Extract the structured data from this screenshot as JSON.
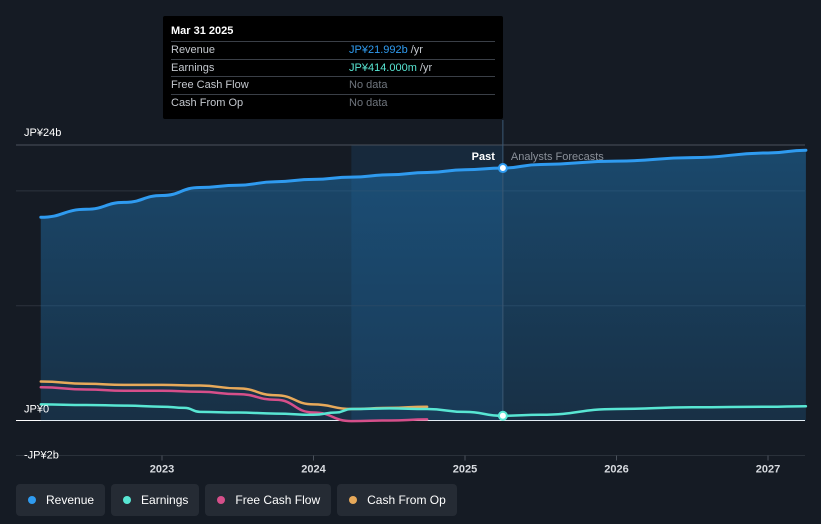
{
  "tooltip": {
    "date": "Mar 31 2025",
    "rows": [
      {
        "label": "Revenue",
        "value": "JP¥21.992b",
        "unit": "/yr",
        "color": "#2f9bf0"
      },
      {
        "label": "Earnings",
        "value": "JP¥414.000m",
        "unit": "/yr",
        "color": "#58e6d3"
      },
      {
        "label": "Free Cash Flow",
        "value": "No data",
        "unit": ""
      },
      {
        "label": "Cash From Op",
        "value": "No data",
        "unit": ""
      }
    ]
  },
  "legend": [
    {
      "label": "Revenue",
      "color": "#2f9bf0"
    },
    {
      "label": "Earnings",
      "color": "#58e6d3"
    },
    {
      "label": "Free Cash Flow",
      "color": "#d64f8a"
    },
    {
      "label": "Cash From Op",
      "color": "#e7a95a"
    }
  ],
  "colors": {
    "background": "#151b24",
    "revenue": "#2f9bf0",
    "earnings": "#58e6d3",
    "fcf": "#d64f8a",
    "cfo": "#e7a95a",
    "grid": "#2c333d",
    "axis": "#ffffff",
    "muted": "#8a9099"
  },
  "chart_data": {
    "type": "line",
    "title": "",
    "unit": "JP¥ billions",
    "y_axis_labels": [
      "JP¥24b",
      "JP¥0",
      "-JP¥2b"
    ],
    "ylim": [
      -2,
      24
    ],
    "x_ticks": [
      "2023",
      "2024",
      "2025",
      "2026",
      "2027"
    ],
    "xlim": [
      2022.2,
      2027.25
    ],
    "past_label": "Past",
    "forecast_label": "Analysts Forecasts",
    "past_region_start": 2024.25,
    "divider": 2025.25,
    "series": [
      {
        "name": "Revenue",
        "key": "revenue",
        "points": [
          [
            2022.2,
            17.7
          ],
          [
            2022.5,
            18.4
          ],
          [
            2022.75,
            19.0
          ],
          [
            2023.0,
            19.6
          ],
          [
            2023.25,
            20.3
          ],
          [
            2023.5,
            20.5
          ],
          [
            2023.75,
            20.8
          ],
          [
            2024.0,
            21.0
          ],
          [
            2024.25,
            21.2
          ],
          [
            2024.5,
            21.4
          ],
          [
            2024.75,
            21.6
          ],
          [
            2025.0,
            21.85
          ],
          [
            2025.25,
            22.0
          ],
          [
            2025.5,
            22.3
          ],
          [
            2026.0,
            22.6
          ],
          [
            2026.5,
            22.9
          ],
          [
            2027.0,
            23.3
          ],
          [
            2027.25,
            23.55
          ]
        ]
      },
      {
        "name": "Earnings",
        "key": "earnings",
        "points": [
          [
            2022.2,
            1.4
          ],
          [
            2022.5,
            1.35
          ],
          [
            2022.75,
            1.3
          ],
          [
            2023.0,
            1.2
          ],
          [
            2023.15,
            1.1
          ],
          [
            2023.25,
            0.75
          ],
          [
            2023.5,
            0.7
          ],
          [
            2023.75,
            0.6
          ],
          [
            2024.0,
            0.5
          ],
          [
            2024.15,
            0.7
          ],
          [
            2024.25,
            1.0
          ],
          [
            2024.5,
            1.05
          ],
          [
            2024.75,
            1.0
          ],
          [
            2025.0,
            0.75
          ],
          [
            2025.25,
            0.41
          ],
          [
            2025.5,
            0.5
          ],
          [
            2026.0,
            1.0
          ],
          [
            2026.5,
            1.15
          ],
          [
            2027.0,
            1.2
          ],
          [
            2027.25,
            1.25
          ]
        ]
      },
      {
        "name": "Free Cash Flow",
        "key": "fcf",
        "points": [
          [
            2022.2,
            2.9
          ],
          [
            2022.5,
            2.7
          ],
          [
            2022.75,
            2.6
          ],
          [
            2023.0,
            2.6
          ],
          [
            2023.25,
            2.5
          ],
          [
            2023.5,
            2.3
          ],
          [
            2023.75,
            1.8
          ],
          [
            2024.0,
            0.7
          ],
          [
            2024.25,
            -0.05
          ],
          [
            2024.5,
            0.0
          ],
          [
            2024.75,
            0.1
          ]
        ]
      },
      {
        "name": "Cash From Op",
        "key": "cfo",
        "points": [
          [
            2022.2,
            3.4
          ],
          [
            2022.5,
            3.2
          ],
          [
            2022.75,
            3.1
          ],
          [
            2023.0,
            3.1
          ],
          [
            2023.25,
            3.05
          ],
          [
            2023.5,
            2.8
          ],
          [
            2023.75,
            2.2
          ],
          [
            2024.0,
            1.4
          ],
          [
            2024.25,
            1.0
          ],
          [
            2024.5,
            1.1
          ],
          [
            2024.75,
            1.2
          ]
        ]
      }
    ]
  }
}
